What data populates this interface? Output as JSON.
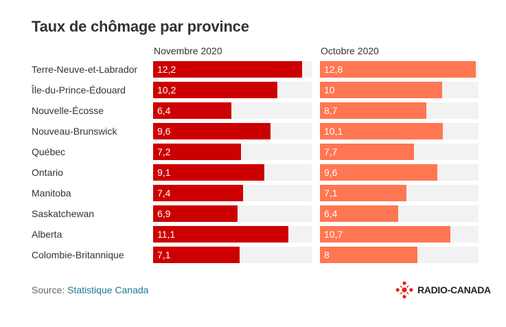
{
  "chart_data": {
    "type": "bar",
    "title": "Taux de chômage par province",
    "categories": [
      "Terre-Neuve-et-Labrador",
      "Île-du-Prince-Édouard",
      "Nouvelle-Écosse",
      "Nouveau-Brunswick",
      "Québec",
      "Ontario",
      "Manitoba",
      "Saskatchewan",
      "Alberta",
      "Colombie-Britannique"
    ],
    "series": [
      {
        "name": "Novembre 2020",
        "values": [
          12.2,
          10.2,
          6.4,
          9.6,
          7.2,
          9.1,
          7.4,
          6.9,
          11.1,
          7.1
        ],
        "labels": [
          "12,2",
          "10,2",
          "6,4",
          "9,6",
          "7,2",
          "9,1",
          "7,4",
          "6,9",
          "11,1",
          "7,1"
        ],
        "color": "#cc0000"
      },
      {
        "name": "Octobre 2020",
        "values": [
          12.8,
          10,
          8.7,
          10.1,
          7.7,
          9.6,
          7.1,
          6.4,
          10.7,
          8
        ],
        "labels": [
          "12,8",
          "10",
          "8,7",
          "10,1",
          "7,7",
          "9,6",
          "7,1",
          "6,4",
          "10,7",
          "8"
        ],
        "color": "#ff7752"
      }
    ],
    "xlim": [
      0,
      13.0
    ],
    "track_color": "#f2f2f2",
    "legend": "column headers above each panel"
  },
  "source": {
    "prefix": "Source: ",
    "name": "Statistique Canada"
  },
  "logo": {
    "text": "RADIO-CANADA",
    "color": "#e2231a"
  }
}
